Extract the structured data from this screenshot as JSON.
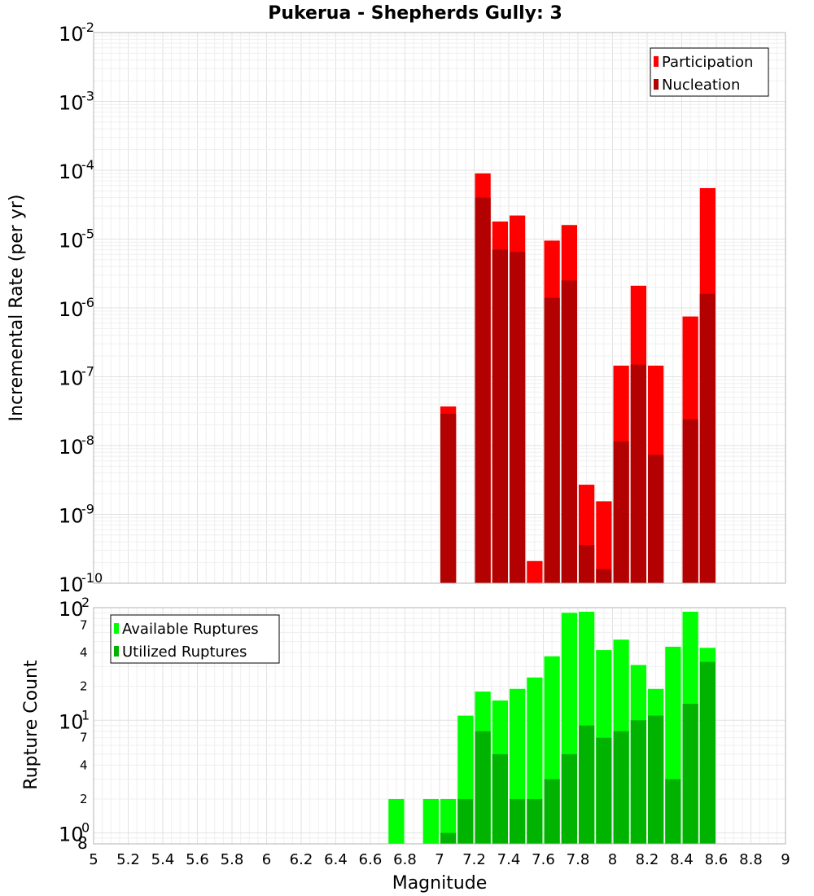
{
  "colors": {
    "participation": "#ff0000",
    "nucleation": "#b30000",
    "available": "#00ff00",
    "utilized": "#00b300"
  },
  "chart_data": [
    {
      "type": "bar",
      "title": "Pukerua - Shepherds Gully: 3",
      "xlabel": "",
      "ylabel": "Incremental Rate (per yr)",
      "xlim": [
        5,
        9
      ],
      "ylim": [
        1e-10,
        0.01
      ],
      "yscale": "log",
      "bar_width": 0.1,
      "grid": true,
      "legend_position": "top-right",
      "x": [
        7.05,
        7.25,
        7.35,
        7.45,
        7.55,
        7.65,
        7.75,
        7.85,
        7.95,
        8.05,
        8.15,
        8.25,
        8.45,
        8.55
      ],
      "series": [
        {
          "name": "Participation",
          "values": [
            3.7e-08,
            9e-05,
            1.8e-05,
            2.2e-05,
            2.1e-10,
            9.5e-06,
            1.6e-05,
            2.7e-09,
            1.55e-09,
            1.45e-07,
            2.1e-06,
            1.45e-07,
            7.5e-07,
            5.5e-05
          ]
        },
        {
          "name": "Nucleation",
          "values": [
            2.9e-08,
            4e-05,
            7e-06,
            6.5e-06,
            0,
            1.4e-06,
            2.5e-06,
            3.6e-10,
            1.6e-10,
            1.15e-08,
            1.5e-07,
            7.3e-09,
            2.4e-08,
            1.6e-06
          ]
        }
      ]
    },
    {
      "type": "bar",
      "title": "",
      "xlabel": "Magnitude",
      "ylabel": "Rupture Count",
      "xlim": [
        5,
        9
      ],
      "ylim": [
        0.8,
        100
      ],
      "yscale": "log",
      "bar_width": 0.1,
      "grid": true,
      "legend_position": "top-left",
      "x": [
        6.75,
        6.95,
        7.05,
        7.15,
        7.25,
        7.35,
        7.45,
        7.55,
        7.65,
        7.75,
        7.85,
        7.95,
        8.05,
        8.15,
        8.25,
        8.35,
        8.45,
        8.55
      ],
      "series": [
        {
          "name": "Available Ruptures",
          "values": [
            2,
            2,
            2,
            11,
            18,
            15,
            19,
            24,
            37,
            90,
            92,
            42,
            52,
            31,
            19,
            45,
            92,
            44
          ]
        },
        {
          "name": "Utilized Ruptures",
          "values": [
            0,
            0,
            1,
            2,
            8,
            5,
            2,
            2,
            3,
            5,
            9,
            7,
            8,
            10,
            11,
            3,
            14,
            33
          ]
        }
      ]
    }
  ],
  "axes": {
    "x_ticks": [
      "5",
      "5.2",
      "5.4",
      "5.6",
      "5.8",
      "6",
      "6.2",
      "6.4",
      "6.6",
      "6.8",
      "7",
      "7.2",
      "7.4",
      "7.6",
      "7.8",
      "8",
      "8.2",
      "8.4",
      "8.6",
      "8.8",
      "9"
    ],
    "top_y_ticks": [
      {
        "base": "10",
        "exp": "-2"
      },
      {
        "base": "10",
        "exp": "-3"
      },
      {
        "base": "10",
        "exp": "-4"
      },
      {
        "base": "10",
        "exp": "-5"
      },
      {
        "base": "10",
        "exp": "-6"
      },
      {
        "base": "10",
        "exp": "-7"
      },
      {
        "base": "10",
        "exp": "-8"
      },
      {
        "base": "10",
        "exp": "-9"
      },
      {
        "base": "10",
        "exp": "-10"
      }
    ],
    "bottom_y_major": [
      {
        "base": "10",
        "exp": "2"
      },
      {
        "base": "10",
        "exp": "1"
      },
      {
        "base": "10",
        "exp": "0"
      }
    ],
    "bottom_y_minor": [
      "7",
      "4",
      "2",
      "7",
      "4",
      "2",
      "8"
    ]
  }
}
